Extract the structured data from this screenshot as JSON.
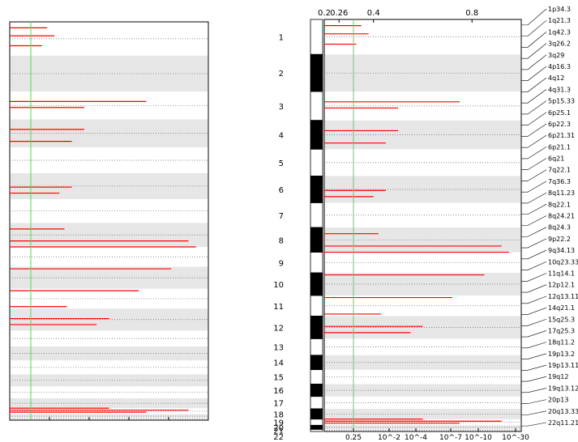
{
  "chart_data": [
    {
      "type": "bar",
      "orientation": "horizontal",
      "title": "",
      "threshold_line": {
        "color": "#66cc66"
      },
      "tick_labels": [],
      "note": ""
    },
    {
      "type": "bar",
      "orientation": "horizontal",
      "title": "",
      "top_axis": {
        "ticks": [
          "0.2",
          "0.26",
          "0.4",
          "0.8"
        ],
        "range": [
          0.2,
          1.0
        ]
      },
      "bottom_axis": {
        "ticks": [
          "0.25",
          "10^-2",
          "10^-4",
          "10^-7",
          "10^-10",
          "10^-30"
        ]
      },
      "threshold": {
        "value": 0.26,
        "color": "#66cc66"
      },
      "chromosomes": [
        "1",
        "2",
        "3",
        "4",
        "5",
        "6",
        "7",
        "8",
        "9",
        "10",
        "11",
        "12",
        "13",
        "14",
        "15",
        "16",
        "17",
        "18",
        "19",
        "20",
        "21",
        "22"
      ],
      "chromosome_bands": [
        {
          "chr": "1",
          "y0": 0,
          "y1": 0.085
        },
        {
          "chr": "2",
          "y0": 0.085,
          "y1": 0.175
        },
        {
          "chr": "3",
          "y0": 0.175,
          "y1": 0.245
        },
        {
          "chr": "4",
          "y0": 0.245,
          "y1": 0.315
        },
        {
          "chr": "5",
          "y0": 0.315,
          "y1": 0.38
        },
        {
          "chr": "6",
          "y0": 0.38,
          "y1": 0.445
        },
        {
          "chr": "7",
          "y0": 0.445,
          "y1": 0.505
        },
        {
          "chr": "8",
          "y0": 0.505,
          "y1": 0.565
        },
        {
          "chr": "9",
          "y0": 0.565,
          "y1": 0.615
        },
        {
          "chr": "10",
          "y0": 0.615,
          "y1": 0.67
        },
        {
          "chr": "11",
          "y0": 0.67,
          "y1": 0.72
        },
        {
          "chr": "12",
          "y0": 0.72,
          "y1": 0.775
        },
        {
          "chr": "13",
          "y0": 0.775,
          "y1": 0.815
        },
        {
          "chr": "14",
          "y0": 0.815,
          "y1": 0.85
        },
        {
          "chr": "15",
          "y0": 0.85,
          "y1": 0.885
        },
        {
          "chr": "16",
          "y0": 0.885,
          "y1": 0.915
        },
        {
          "chr": "17",
          "y0": 0.915,
          "y1": 0.945
        },
        {
          "chr": "18",
          "y0": 0.945,
          "y1": 0.97
        },
        {
          "chr": "19",
          "y0": 0.97,
          "y1": 0.985
        },
        {
          "chr": "20",
          "y0": 0.985,
          "y1": 0.995
        },
        {
          "chr": "21",
          "y0": 0.995,
          "y1": 1.0
        },
        {
          "chr": "22",
          "y0": 1.0,
          "y1": 1.0
        }
      ],
      "peaks": [
        {
          "y": 0.015,
          "v": 0.35
        },
        {
          "y": 0.035,
          "v": 0.38
        },
        {
          "y": 0.06,
          "v": 0.33
        },
        {
          "y": 0.2,
          "v": 0.75
        },
        {
          "y": 0.215,
          "v": 0.5
        },
        {
          "y": 0.27,
          "v": 0.5
        },
        {
          "y": 0.3,
          "v": 0.45
        },
        {
          "y": 0.415,
          "v": 0.45
        },
        {
          "y": 0.43,
          "v": 0.4
        },
        {
          "y": 0.52,
          "v": 0.42
        },
        {
          "y": 0.55,
          "v": 0.92
        },
        {
          "y": 0.565,
          "v": 0.95
        },
        {
          "y": 0.62,
          "v": 0.85
        },
        {
          "y": 0.675,
          "v": 0.72
        },
        {
          "y": 0.715,
          "v": 0.43
        },
        {
          "y": 0.745,
          "v": 0.6
        },
        {
          "y": 0.76,
          "v": 0.55
        },
        {
          "y": 0.97,
          "v": 0.6
        },
        {
          "y": 0.975,
          "v": 0.92
        },
        {
          "y": 0.98,
          "v": 0.75
        }
      ],
      "band_labels": [
        "1p34.3",
        "1q21.3",
        "1q42.3",
        "3q26.2",
        "3q29",
        "4p16.3",
        "4q12",
        "4q31.3",
        "5p15.33",
        "6p25.1",
        "6p22.3",
        "6p21.31",
        "6p21.1",
        "6q21",
        "7q22.1",
        "7q36.3",
        "8q11.23",
        "8q22.1",
        "8q24.21",
        "8q24.3",
        "9p22.2",
        "9q34.13",
        "10q23.33",
        "11q14.1",
        "12p12.1",
        "12q13.11",
        "14q21.1",
        "15q25.3",
        "17q25.3",
        "18q11.2",
        "19p13.2",
        "19p13.11",
        "19q12",
        "19q13.12",
        "20p13",
        "20q13.33",
        "22q11.21"
      ]
    }
  ]
}
